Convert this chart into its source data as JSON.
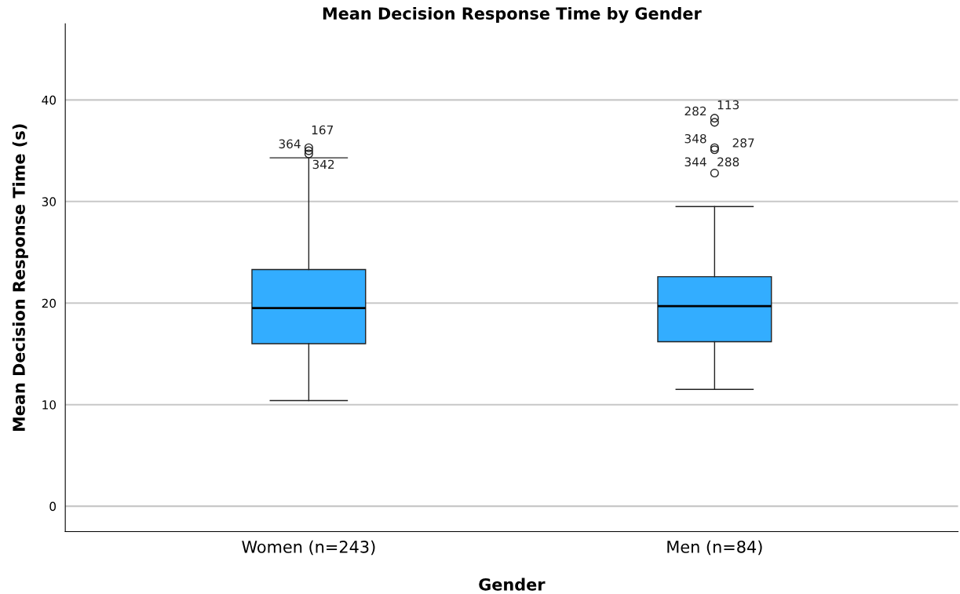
{
  "chart_data": {
    "type": "box",
    "title": "Mean Decision Response Time by Gender",
    "xlabel": "Gender",
    "ylabel": "Mean Decision Response Time (s)",
    "categories": [
      "Women (n=243)",
      "Men (n=84)"
    ],
    "series": [
      {
        "color": "#33adff",
        "boxes": [
          {
            "low": 10.4,
            "q1": 16.0,
            "median": 19.5,
            "q3": 23.3,
            "high": 34.3,
            "outliers": [
              35.3,
              35.0,
              34.7
            ]
          },
          {
            "low": 11.5,
            "q1": 16.2,
            "median": 19.7,
            "q3": 22.6,
            "high": 29.5,
            "outliers": [
              38.2,
              37.8,
              35.3,
              35.1,
              32.8
            ]
          }
        ]
      }
    ],
    "ylim": [
      -2.5,
      47.5
    ],
    "yticks": [
      0,
      10,
      20,
      30,
      40
    ],
    "grid": "y",
    "annotations": [
      "167",
      "364",
      "342",
      "113",
      "282",
      "348",
      "287",
      "344",
      "288"
    ]
  }
}
